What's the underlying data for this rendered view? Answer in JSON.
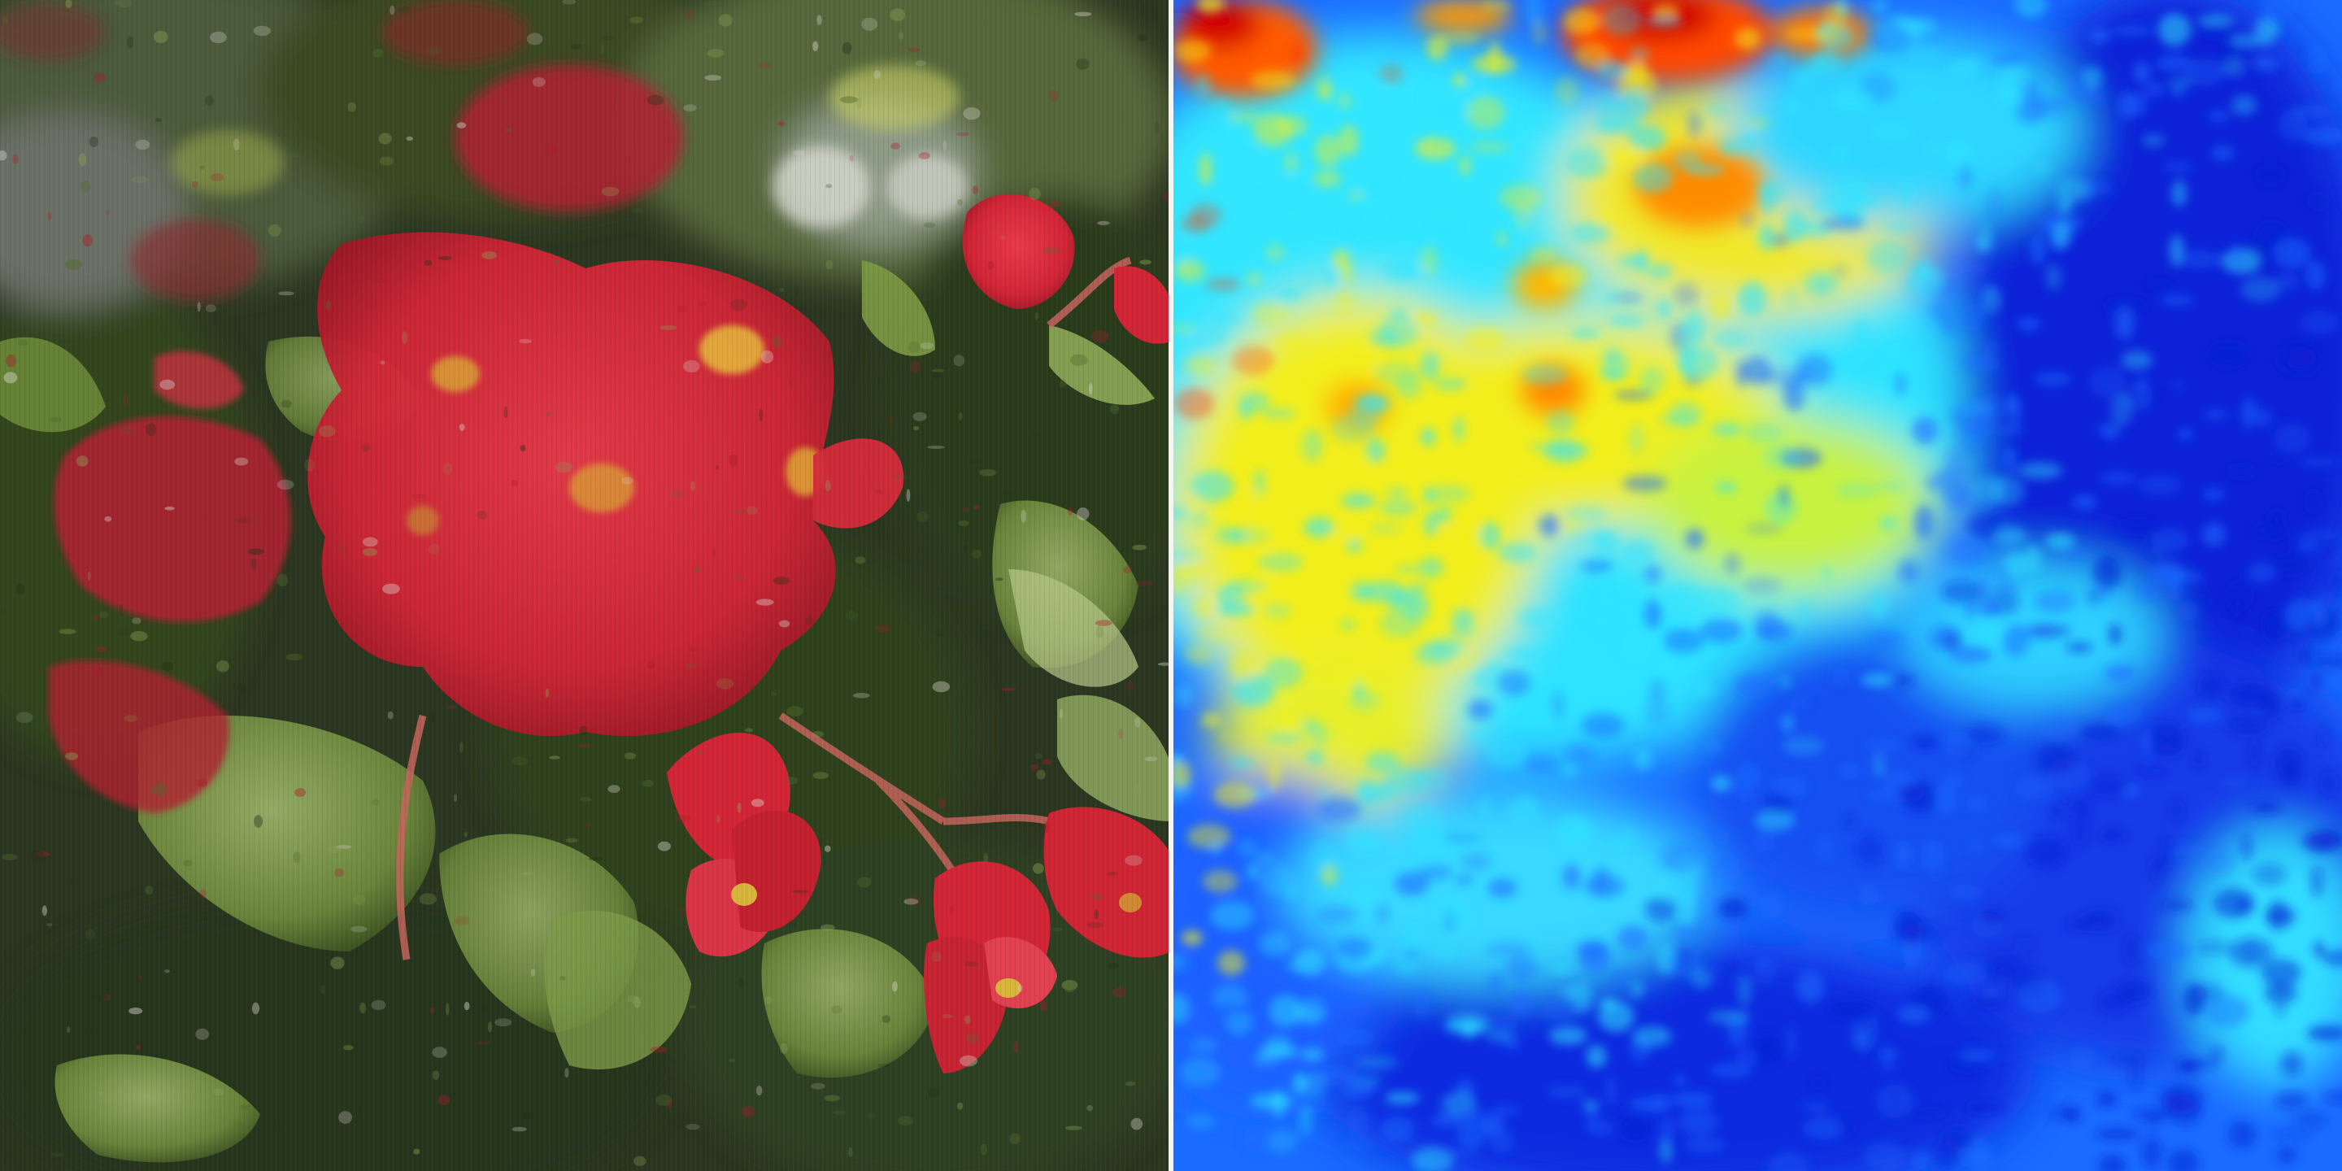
{
  "panels": [
    {
      "id": "photo",
      "kind": "photograph",
      "subject_icon": "flower-icon",
      "palette": {
        "background": "#2f3b22",
        "foliage_dark": "#233018",
        "foliage_mid": "#4f6b2c",
        "leaf_light": "#8aa255",
        "petal_red": "#d9283a",
        "petal_deep": "#a81c2a",
        "stamen_yellow": "#d7b13a",
        "highlight_white": "#d9d6cf"
      }
    },
    {
      "id": "heatmap",
      "kind": "heatmap",
      "colormap": "jet",
      "palette": {
        "low": "#0a1fd0",
        "low_mid": "#1a6bff",
        "mid": "#2fe3ff",
        "mid_high": "#f2ee1c",
        "high": "#ff3a00",
        "max": "#c80000"
      }
    }
  ],
  "divider_color": "#f4f4f4"
}
